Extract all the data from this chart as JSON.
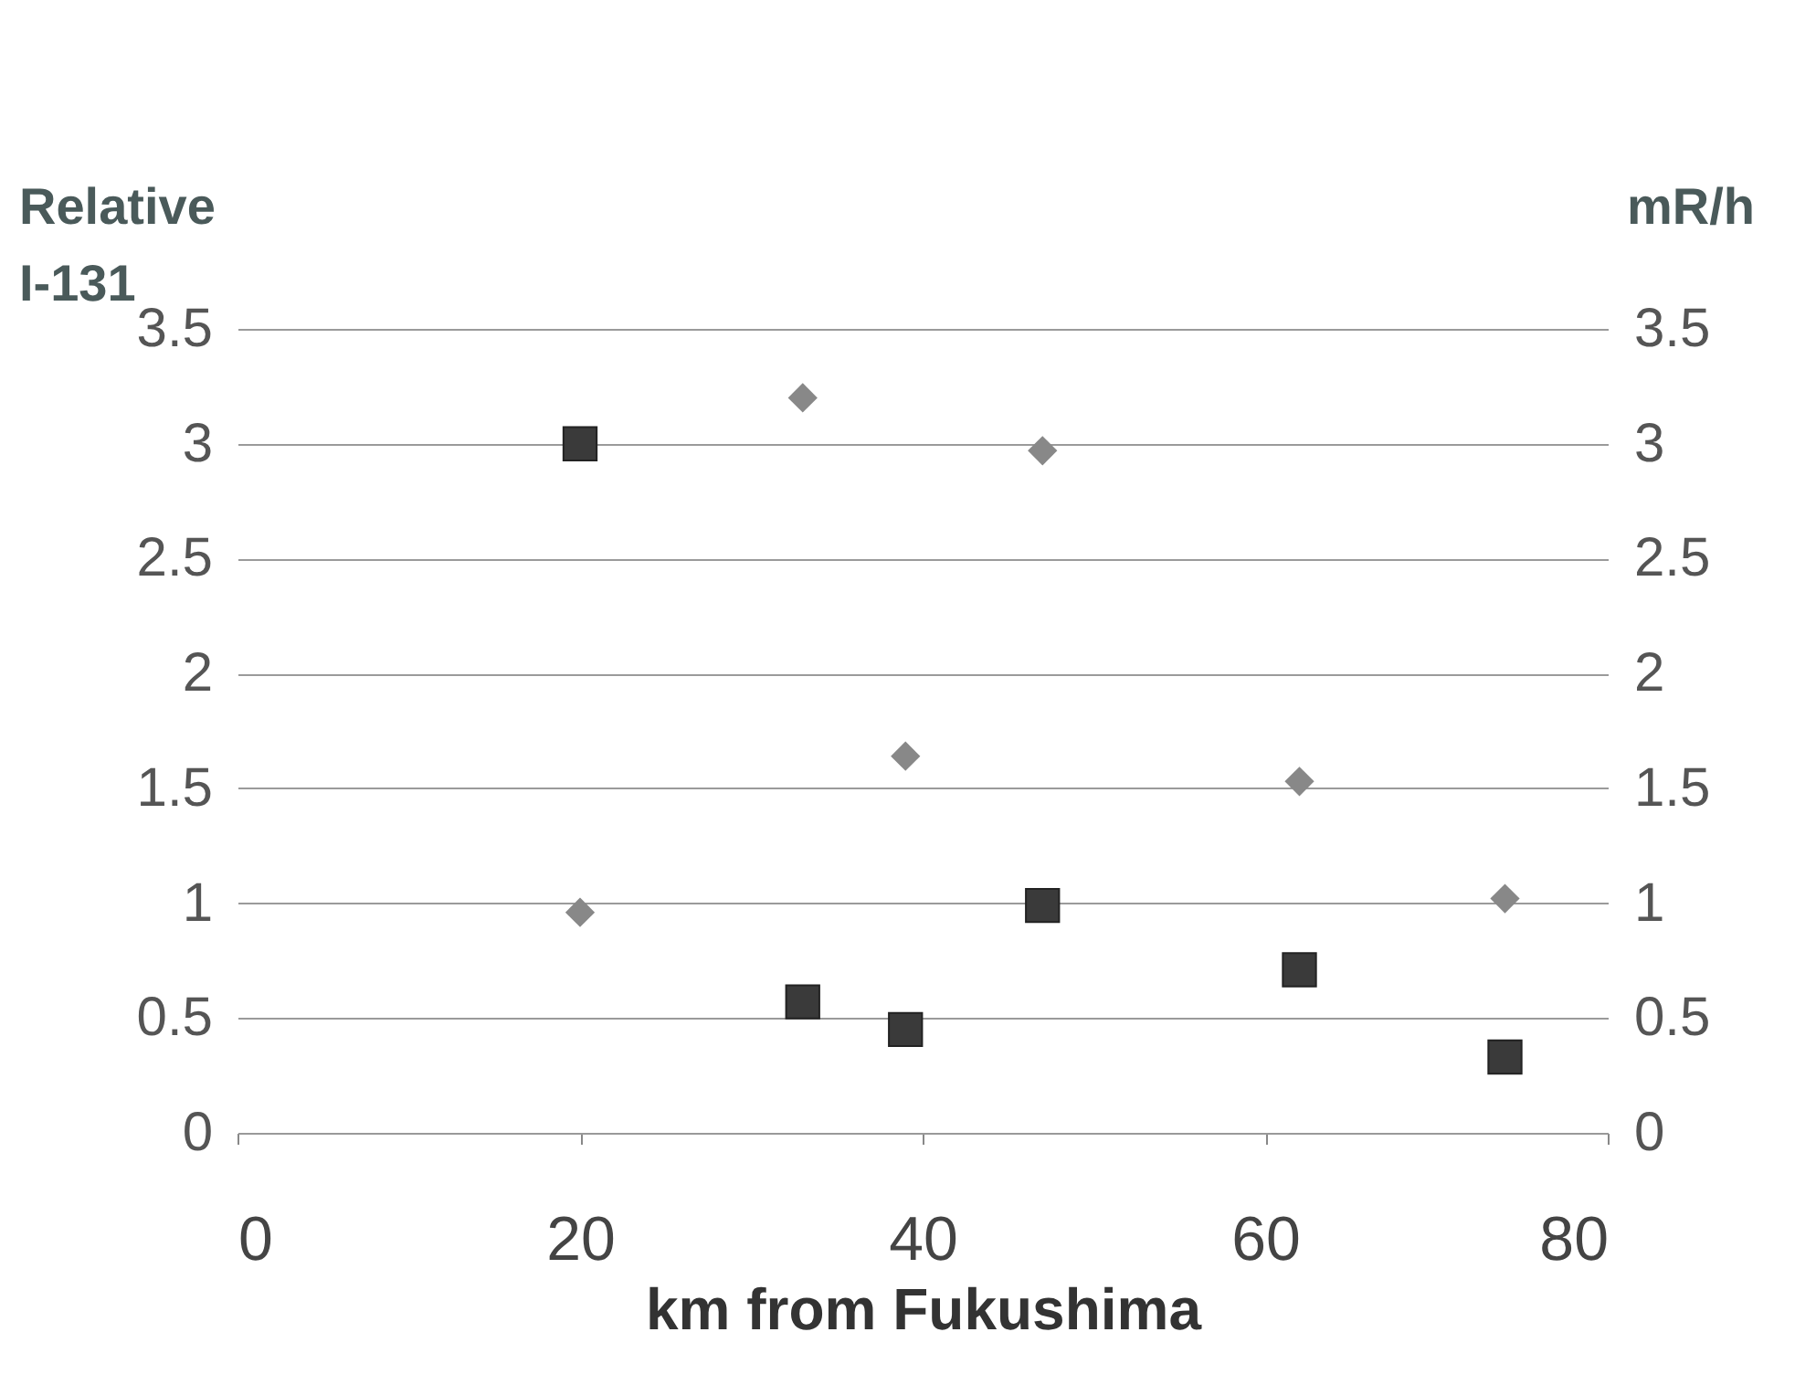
{
  "chart_data": {
    "type": "scatter",
    "xlabel": "km from Fukushima",
    "ylabel": "Relative I-131",
    "y2label": "mR/h",
    "xlim": [
      0,
      80
    ],
    "xticks": [
      0,
      20,
      40,
      60,
      80
    ],
    "ylim": [
      0,
      3.5
    ],
    "yticks": [
      0,
      0.5,
      1,
      1.5,
      2,
      2.5,
      3,
      3.5
    ],
    "y2lim": [
      0,
      3.5
    ],
    "y2ticks": [
      0,
      0.5,
      1,
      1.5,
      2,
      2.5,
      3,
      3.5
    ],
    "grid": "y",
    "series": [
      {
        "color": "#3a3a3a",
        "marker": "square",
        "x": [
          20,
          33,
          39,
          47,
          62,
          74
        ],
        "values": [
          3.0,
          0.57,
          0.45,
          0.99,
          0.71,
          0.33
        ]
      },
      {
        "color": "#888888",
        "marker": "diamond",
        "axis": "y2",
        "x": [
          20,
          33,
          39,
          47,
          62,
          74
        ],
        "values": [
          0.96,
          3.2,
          1.64,
          2.97,
          1.53,
          1.02
        ]
      }
    ]
  }
}
